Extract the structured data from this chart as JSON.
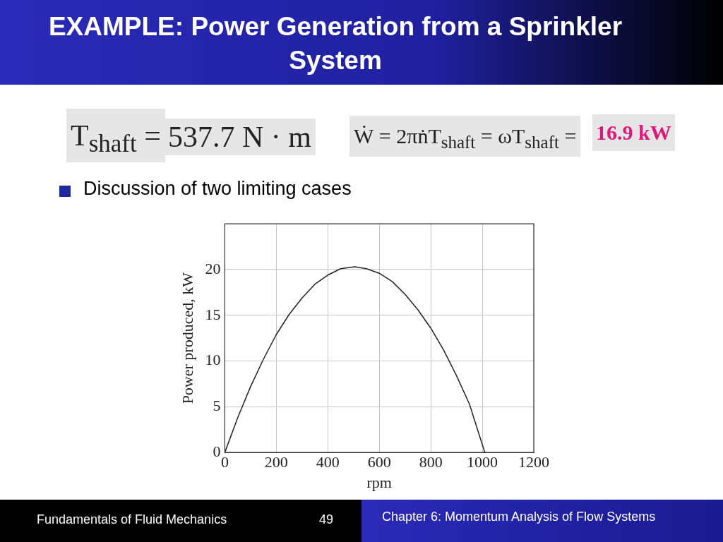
{
  "chart_data": {
    "type": "line",
    "title": "EXAMPLE: Power Generation from a Sprinkler System",
    "xlabel": "rpm",
    "ylabel": "Power produced, kW",
    "x": [
      0,
      50,
      100,
      150,
      200,
      250,
      300,
      350,
      400,
      450,
      505,
      550,
      600,
      650,
      700,
      750,
      800,
      850,
      900,
      950,
      1010
    ],
    "series": [
      {
        "color": "#222222",
        "values": [
          0,
          3.8,
          7.2,
          10.2,
          12.9,
          15.1,
          16.9,
          18.4,
          19.4,
          20.1,
          20.3,
          20.1,
          19.6,
          18.7,
          17.3,
          15.6,
          13.6,
          11.2,
          8.4,
          5.3,
          0
        ]
      }
    ],
    "xlim": [
      0,
      1200
    ],
    "xticks": [
      0,
      200,
      400,
      600,
      800,
      1000,
      1200
    ],
    "ylim": [
      0,
      25
    ],
    "yticks": [
      0,
      5,
      10,
      15,
      20
    ],
    "grid": true,
    "marker": "none",
    "line_style": "solid",
    "legend": false,
    "annotations": [
      "T$_{shaft}$ =",
      "537.7 N · m",
      "Ẇ = 2πṅT$_{shaft}$ = ωT$_{shaft}$ =",
      "16.9 kW",
      "Discussion of two limiting cases",
      "Fundamentals of Fluid Mechanics",
      "49",
      "Chapter 6:  Momentum Analysis of Flow Systems"
    ]
  }
}
